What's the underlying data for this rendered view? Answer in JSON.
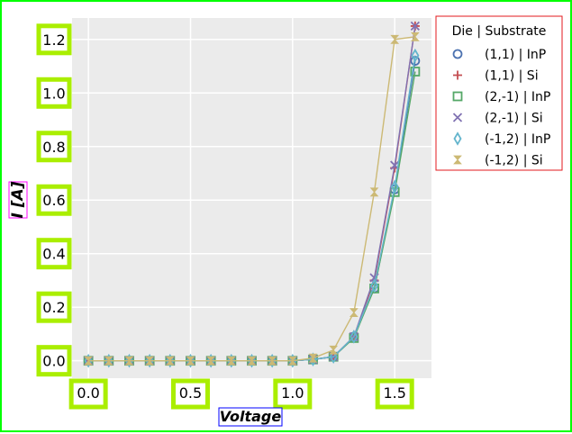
{
  "chart_data": {
    "type": "scatter",
    "xlabel": "Voltage",
    "ylabel": "I [A]",
    "xlim": [
      -0.08,
      1.68
    ],
    "ylim": [
      -0.065,
      1.28
    ],
    "x_ticks": [
      {
        "value": 0.0,
        "label": "0.0"
      },
      {
        "value": 0.5,
        "label": "0.5"
      },
      {
        "value": 1.0,
        "label": "1.0"
      },
      {
        "value": 1.5,
        "label": "1.5"
      }
    ],
    "y_ticks": [
      {
        "value": 0.0,
        "label": "0.0"
      },
      {
        "value": 0.2,
        "label": "0.2"
      },
      {
        "value": 0.4,
        "label": "0.4"
      },
      {
        "value": 0.6,
        "label": "0.6"
      },
      {
        "value": 0.8,
        "label": "0.8"
      },
      {
        "value": 1.0,
        "label": "1.0"
      },
      {
        "value": 1.2,
        "label": "1.2"
      }
    ],
    "grid": true,
    "legend": {
      "title": "Die | Substrate",
      "placement": "outside-top-right"
    },
    "x": [
      0.0,
      0.1,
      0.2,
      0.3,
      0.4,
      0.5,
      0.6,
      0.7,
      0.8,
      0.9,
      1.0,
      1.1,
      1.2,
      1.3,
      1.4,
      1.5,
      1.6
    ],
    "series": [
      {
        "name": "(1,1) | InP",
        "marker": "circle",
        "color": "#4c72b0",
        "values": [
          0,
          0,
          0,
          0,
          0,
          0,
          0,
          0,
          0,
          0,
          0,
          0.005,
          0.015,
          0.09,
          0.27,
          0.64,
          1.12
        ]
      },
      {
        "name": "(1,1) | Si",
        "marker": "plus",
        "color": "#c44e52",
        "values": [
          0,
          0,
          0,
          0,
          0,
          0,
          0,
          0,
          0,
          0,
          0,
          0.005,
          0.015,
          0.09,
          0.3,
          0.72,
          1.25
        ]
      },
      {
        "name": "(2,-1) | InP",
        "marker": "square",
        "color": "#55a868",
        "values": [
          0,
          0,
          0,
          0,
          0,
          0,
          0,
          0,
          0,
          0,
          0,
          0.005,
          0.015,
          0.085,
          0.27,
          0.63,
          1.08
        ]
      },
      {
        "name": "(2,-1) | Si",
        "marker": "x",
        "color": "#8172b2",
        "values": [
          0,
          0,
          0,
          0,
          0,
          0,
          0,
          0,
          0,
          0,
          0,
          0.005,
          0.015,
          0.09,
          0.31,
          0.73,
          1.25
        ]
      },
      {
        "name": "(-1,2) | InP",
        "marker": "diamond",
        "color": "#64b5cd",
        "values": [
          0,
          0,
          0,
          0,
          0,
          0,
          0,
          0,
          0,
          0,
          0,
          0.005,
          0.015,
          0.09,
          0.28,
          0.65,
          1.14
        ]
      },
      {
        "name": "(-1,2) | Si",
        "marker": "bowtie",
        "color": "#ccb974",
        "values": [
          0,
          0,
          0,
          0,
          0,
          0,
          0,
          0,
          0,
          0,
          0,
          0.01,
          0.04,
          0.18,
          0.63,
          1.2,
          1.21
        ]
      }
    ]
  }
}
